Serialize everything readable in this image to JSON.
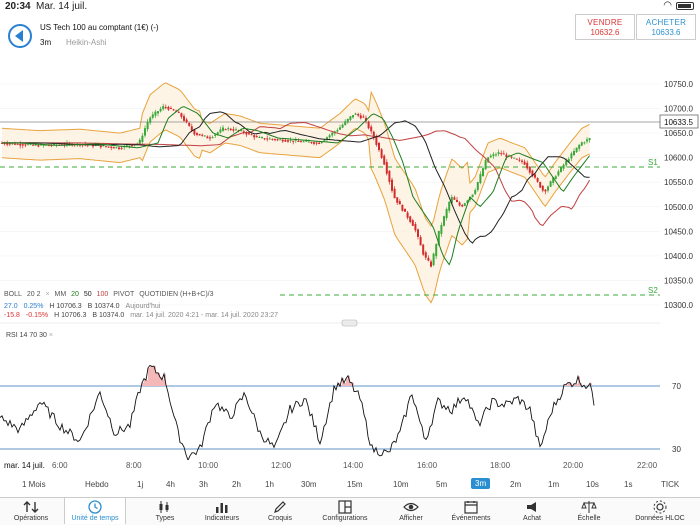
{
  "status": {
    "time": "20:34",
    "date": "Mar. 14 juil.",
    "battery": ""
  },
  "instrument": {
    "name": "US Tech 100 au comptant (1€) (-)",
    "timeframe": "3m",
    "chart_type": "Heikin-Ashi"
  },
  "trade": {
    "sell_label": "VENDRE",
    "sell_price": "10632.6",
    "buy_label": "ACHETER",
    "buy_price": "10633.6"
  },
  "price_axis": {
    "ticks": [
      "10750.0",
      "10700.0",
      "10650.0",
      "10600.0",
      "10550.0",
      "10500.0",
      "10450.0",
      "10400.0",
      "10350.0",
      "10300.0"
    ],
    "current": "10633.5",
    "s1": "S1",
    "s2": "S2"
  },
  "indicators": {
    "boll": "BOLL",
    "boll_params": "20 2",
    "boll_close": "×",
    "mm": "MM",
    "mm_p1": "20",
    "mm_p2": "50",
    "mm_p3": "100",
    "pivot": "PIVOT",
    "pivot_params": "QUOTIDIEN (H+B+C)/3"
  },
  "stats": {
    "row1": {
      "chg": "27.0",
      "pct": "0.25%",
      "high": "H 10706.3",
      "low": "B 10374.0",
      "period": "Aujourd'hui"
    },
    "row2": {
      "chg": "-15.8",
      "pct": "-0.15%",
      "high": "H 10706.3",
      "low": "B 10374.0",
      "period": "mar. 14 juil. 2020 4:21 - mar. 14 juil. 2020 23:27"
    }
  },
  "rsi": {
    "label": "RSI",
    "params": "14 70 30",
    "close": "×",
    "upper": "70",
    "lower": "30"
  },
  "time_axis": {
    "date": "mar. 14 juil.",
    "ticks": [
      "6:00",
      "8:00",
      "10:00",
      "12:00",
      "14:00",
      "16:00",
      "18:00",
      "20:00",
      "22:00"
    ]
  },
  "intervals": [
    "1 Mois",
    "Hebdo",
    "1j",
    "4h",
    "3h",
    "2h",
    "1h",
    "30m",
    "15m",
    "10m",
    "5m",
    "3m",
    "2m",
    "1m",
    "10s",
    "1s",
    "TICK"
  ],
  "active_interval": "3m",
  "toolbar": [
    {
      "label": "Opérations",
      "icon": "operations-icon"
    },
    {
      "label": "Unité de temps",
      "icon": "clock-icon"
    },
    {
      "label": "Types",
      "icon": "candle-types-icon"
    },
    {
      "label": "Indicateurs",
      "icon": "indicators-icon"
    },
    {
      "label": "Croquis",
      "icon": "pencil-icon"
    },
    {
      "label": "Configurations",
      "icon": "layout-icon"
    },
    {
      "label": "Afficher",
      "icon": "eye-icon"
    },
    {
      "label": "Événements",
      "icon": "calendar-icon"
    },
    {
      "label": "Achat",
      "icon": "megaphone-icon"
    },
    {
      "label": "Échelle",
      "icon": "scale-icon"
    },
    {
      "label": "Données HLOC",
      "icon": "settings-icon"
    }
  ],
  "colors": {
    "bull": "#3aa83a",
    "bear": "#d22b2b",
    "band": "#e8a23c",
    "ma20": "#1e7d1e",
    "ma50": "#222222",
    "ma100": "#c04040",
    "accent": "#2a8fd0"
  }
}
